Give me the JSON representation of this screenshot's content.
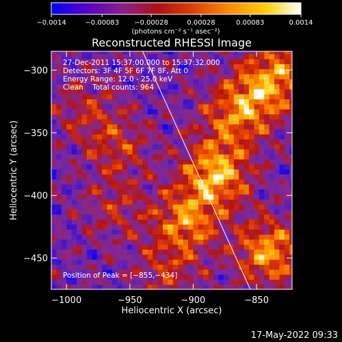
{
  "chart_data": {
    "type": "heatmap",
    "title": "Reconstructed RHESSI Image",
    "xlabel": "Heliocentric X (arcsec)",
    "ylabel": "Heliocentric Y (arcsec)",
    "xlim": [
      -1012,
      -822
    ],
    "ylim": [
      -475,
      -285
    ],
    "xticks": [
      -1000,
      -950,
      -900,
      -850
    ],
    "xtick_labels": [
      "−1000",
      "−950",
      "−900",
      "−850"
    ],
    "yticks": [
      -300,
      -350,
      -400,
      -450
    ],
    "ytick_labels": [
      "−300",
      "−350",
      "−400",
      "−450"
    ],
    "colorbar": {
      "min": -0.0014,
      "max": 0.0014,
      "ticks": [
        -0.0014,
        -0.00083,
        -0.00028,
        0.00028,
        0.00083,
        0.0014
      ],
      "tick_labels": [
        "−0.0014",
        "−0.00083",
        "−0.00028",
        "0.00028",
        "0.00083",
        "0.0014"
      ],
      "units_label": "(photons cm⁻² s⁻¹ asec⁻²)",
      "colormap": [
        "#0000ff",
        "#5a00c8",
        "#8a1f8c",
        "#b01010",
        "#e04000",
        "#ff8c00",
        "#ffd000",
        "#ffffff"
      ]
    },
    "annotations": [
      "27-Dec-2011 15:37:00.000 to 15:37:32.000",
      "Detectors: 3F 4F 5F 6F 7F 8F, Att 0",
      "Energy Range: 12.0 - 25.0 keV",
      "Clean    Total counts: 964"
    ],
    "peak_label": "Position of Peak = [−855,−434]",
    "peak": [
      -855,
      -434
    ],
    "limb_line": [
      [
        -940,
        -285
      ],
      [
        -855,
        -475
      ]
    ],
    "emission_sources": [
      {
        "x": -882,
        "y": -383,
        "amp": 1.0
      },
      {
        "x": -905,
        "y": -420,
        "amp": 0.8
      },
      {
        "x": -840,
        "y": -445,
        "amp": 0.9
      },
      {
        "x": -850,
        "y": -320,
        "amp": 0.7
      },
      {
        "x": -830,
        "y": -300,
        "amp": 0.6
      },
      {
        "x": -870,
        "y": -340,
        "amp": 0.55
      },
      {
        "x": -960,
        "y": -360,
        "amp": 0.45
      },
      {
        "x": -985,
        "y": -330,
        "amp": 0.35
      },
      {
        "x": -920,
        "y": -460,
        "amp": 0.4
      },
      {
        "x": -960,
        "y": -410,
        "amp": 0.35
      }
    ]
  },
  "footer": {
    "timestamp": "17-May-2022 09:33"
  }
}
